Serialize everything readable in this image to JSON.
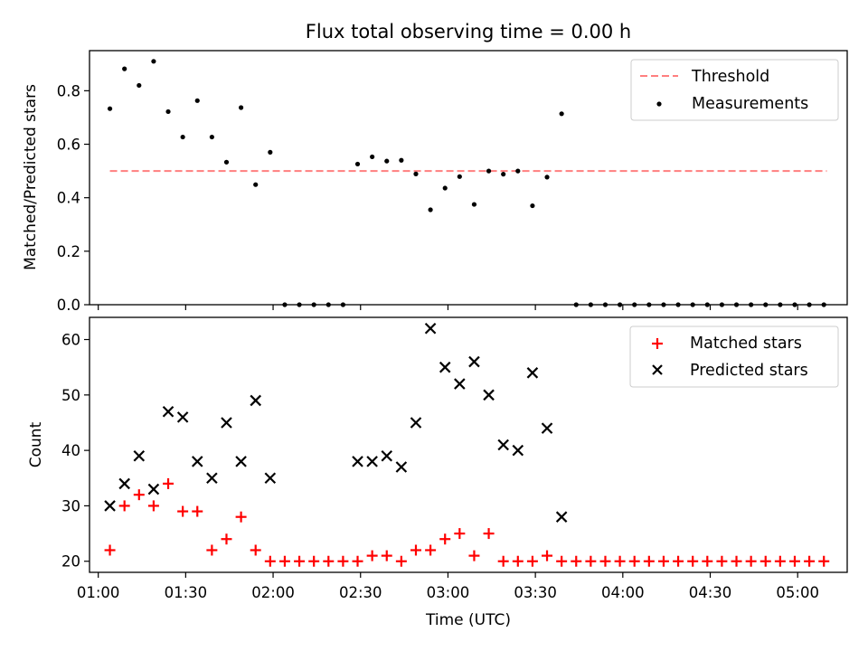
{
  "title": "Flux total observing time = 0.00 h",
  "colors": {
    "threshold": "#ff7f7f",
    "measurement": "#000000",
    "matched": "#ff0000",
    "predicted": "#000000"
  },
  "chart_data": [
    {
      "type": "scatter",
      "title": "Flux total observing time = 0.00 h",
      "xlabel": "",
      "ylabel": "Matched/Predicted stars",
      "ylim": [
        0,
        0.95
      ],
      "yticks": [
        0.0,
        0.2,
        0.4,
        0.6,
        0.8
      ],
      "legend_position": "top-right",
      "legend": [
        "Threshold",
        "Measurements"
      ],
      "threshold": {
        "name": "Threshold",
        "y": 0.5,
        "x_start": "01:04",
        "x_end": "05:10",
        "style": "dashed"
      },
      "series": [
        {
          "name": "Measurements",
          "x": [
            "01:04",
            "01:09",
            "01:14",
            "01:19",
            "01:24",
            "01:29",
            "01:34",
            "01:39",
            "01:44",
            "01:49",
            "01:54",
            "01:59",
            "02:04",
            "02:09",
            "02:14",
            "02:19",
            "02:24",
            "02:29",
            "02:34",
            "02:39",
            "02:44",
            "02:49",
            "02:54",
            "02:59",
            "03:04",
            "03:09",
            "03:14",
            "03:19",
            "03:24",
            "03:29",
            "03:34",
            "03:39",
            "03:44",
            "03:49",
            "03:54",
            "03:59",
            "04:04",
            "04:09",
            "04:14",
            "04:19",
            "04:24",
            "04:29",
            "04:34",
            "04:39",
            "04:44",
            "04:49",
            "04:54",
            "04:59",
            "05:04",
            "05:09"
          ],
          "y": [
            0.733,
            0.882,
            0.82,
            0.91,
            0.722,
            0.627,
            0.763,
            0.627,
            0.533,
            0.737,
            0.449,
            0.57,
            0,
            0,
            0,
            0,
            0,
            0.526,
            0.553,
            0.537,
            0.54,
            0.489,
            0.355,
            0.436,
            0.479,
            0.375,
            0.5,
            0.488,
            0.5,
            0.37,
            0.477,
            0.714,
            0,
            0,
            0,
            0,
            0,
            0,
            0,
            0,
            0,
            0,
            0,
            0,
            0,
            0,
            0,
            0,
            0,
            0
          ]
        }
      ]
    },
    {
      "type": "scatter",
      "xlabel": "Time (UTC)",
      "ylabel": "Count",
      "ylim": [
        18,
        64
      ],
      "yticks": [
        20,
        30,
        40,
        50,
        60
      ],
      "xlim": [
        "00:57",
        "05:17"
      ],
      "xticks": [
        "01:00",
        "01:30",
        "02:00",
        "02:30",
        "03:00",
        "03:30",
        "04:00",
        "04:30",
        "05:00"
      ],
      "legend_position": "top-right",
      "legend": [
        "Matched stars",
        "Predicted stars"
      ],
      "series": [
        {
          "name": "Matched stars",
          "marker": "+",
          "x": [
            "01:04",
            "01:09",
            "01:14",
            "01:19",
            "01:24",
            "01:29",
            "01:34",
            "01:39",
            "01:44",
            "01:49",
            "01:54",
            "01:59",
            "02:04",
            "02:09",
            "02:14",
            "02:19",
            "02:24",
            "02:29",
            "02:34",
            "02:39",
            "02:44",
            "02:49",
            "02:54",
            "02:59",
            "03:04",
            "03:09",
            "03:14",
            "03:19",
            "03:24",
            "03:29",
            "03:34",
            "03:39",
            "03:44",
            "03:49",
            "03:54",
            "03:59",
            "04:04",
            "04:09",
            "04:14",
            "04:19",
            "04:24",
            "04:29",
            "04:34",
            "04:39",
            "04:44",
            "04:49",
            "04:54",
            "04:59",
            "05:04",
            "05:09"
          ],
          "y": [
            22,
            30,
            32,
            30,
            34,
            29,
            29,
            22,
            24,
            28,
            22,
            20,
            20,
            20,
            20,
            20,
            20,
            20,
            21,
            21,
            20,
            22,
            22,
            24,
            25,
            21,
            25,
            20,
            20,
            20,
            21,
            20,
            20,
            20,
            20,
            20,
            20,
            20,
            20,
            20,
            20,
            20,
            20,
            20,
            20,
            20,
            20,
            20,
            20,
            20
          ]
        },
        {
          "name": "Predicted stars",
          "marker": "x",
          "x": [
            "01:04",
            "01:09",
            "01:14",
            "01:19",
            "01:24",
            "01:29",
            "01:34",
            "01:39",
            "01:44",
            "01:49",
            "01:54",
            "01:59",
            "02:29",
            "02:34",
            "02:39",
            "02:44",
            "02:49",
            "02:54",
            "02:59",
            "03:04",
            "03:09",
            "03:14",
            "03:19",
            "03:24",
            "03:29",
            "03:34",
            "03:39"
          ],
          "y": [
            30,
            34,
            39,
            33,
            47,
            46,
            38,
            35,
            45,
            38,
            49,
            35,
            38,
            38,
            39,
            37,
            45,
            62,
            55,
            52,
            56,
            50,
            41,
            40,
            54,
            44,
            28
          ]
        }
      ]
    }
  ]
}
